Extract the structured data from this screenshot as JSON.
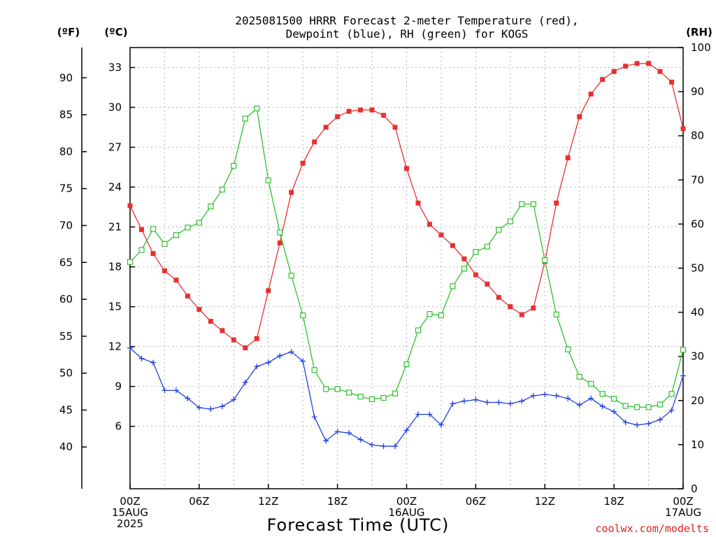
{
  "chart_data": {
    "type": "line",
    "title_lines": [
      "2025081500 HRRR Forecast 2-meter Temperature (red),",
      "Dewpoint (blue), RH (green) for KOGS"
    ],
    "xlabel": "Forecast Time (UTC)",
    "credit": "coolwx.com/modelts",
    "x_unit": "forecast hour",
    "x_range": [
      0,
      48
    ],
    "x_ticks": [
      {
        "hour": 0,
        "lines": [
          "00Z",
          "15AUG",
          "2025"
        ]
      },
      {
        "hour": 6,
        "lines": [
          "06Z"
        ]
      },
      {
        "hour": 12,
        "lines": [
          "12Z"
        ]
      },
      {
        "hour": 18,
        "lines": [
          "18Z"
        ]
      },
      {
        "hour": 24,
        "lines": [
          "00Z",
          "16AUG"
        ]
      },
      {
        "hour": 30,
        "lines": [
          "06Z"
        ]
      },
      {
        "hour": 36,
        "lines": [
          "12Z"
        ]
      },
      {
        "hour": 42,
        "lines": [
          "18Z"
        ]
      },
      {
        "hour": 48,
        "lines": [
          "00Z",
          "17AUG"
        ]
      }
    ],
    "axes": {
      "celsius": {
        "unit_label": "(ºC)",
        "range": [
          1.3,
          34.5
        ],
        "ticks": [
          6,
          9,
          12,
          15,
          18,
          21,
          24,
          27,
          30,
          33
        ]
      },
      "fahrenheit": {
        "unit_label": "(ºF)",
        "range": [
          34.34,
          94.1
        ],
        "ticks": [
          40,
          45,
          50,
          55,
          60,
          65,
          70,
          75,
          80,
          85,
          90
        ]
      },
      "rh": {
        "unit_label": "(RH)",
        "range": [
          0,
          100
        ],
        "ticks": [
          0,
          10,
          20,
          30,
          40,
          50,
          60,
          70,
          80,
          90,
          100
        ]
      }
    },
    "grid": true,
    "series": [
      {
        "name": "2-meter Temperature",
        "color": "#e83030",
        "axis": "celsius",
        "marker": "filled-square",
        "x": [
          0,
          1,
          2,
          3,
          4,
          5,
          6,
          7,
          8,
          9,
          10,
          11,
          12,
          13,
          14,
          15,
          16,
          17,
          18,
          19,
          20,
          21,
          22,
          23,
          24,
          25,
          26,
          27,
          28,
          29,
          30,
          31,
          32,
          33,
          34,
          35,
          36,
          37,
          38,
          39,
          40,
          41,
          42,
          43,
          44,
          45,
          46,
          47,
          48
        ],
        "y": [
          22.6,
          20.8,
          19.0,
          17.7,
          17.0,
          15.8,
          14.8,
          13.9,
          13.2,
          12.5,
          11.9,
          12.6,
          16.2,
          19.8,
          23.6,
          25.8,
          27.4,
          28.5,
          29.3,
          29.7,
          29.8,
          29.8,
          29.4,
          28.5,
          25.4,
          22.8,
          21.2,
          20.4,
          19.6,
          18.6,
          17.4,
          16.7,
          15.7,
          15.0,
          14.4,
          14.9,
          18.4,
          22.8,
          26.2,
          29.3,
          31.0,
          32.1,
          32.7,
          33.1,
          33.3,
          33.3,
          32.7,
          31.9,
          28.4
        ]
      },
      {
        "name": "Dewpoint",
        "color": "#2040e0",
        "axis": "celsius",
        "marker": "plus",
        "x": [
          0,
          1,
          2,
          3,
          4,
          5,
          6,
          7,
          8,
          9,
          10,
          11,
          12,
          13,
          14,
          15,
          16,
          17,
          18,
          19,
          20,
          21,
          22,
          23,
          24,
          25,
          26,
          27,
          28,
          29,
          30,
          31,
          32,
          33,
          34,
          35,
          36,
          37,
          38,
          39,
          40,
          41,
          42,
          43,
          44,
          45,
          46,
          47,
          48
        ],
        "y": [
          11.9,
          11.1,
          10.8,
          8.7,
          8.7,
          8.1,
          7.4,
          7.3,
          7.5,
          8.0,
          9.3,
          10.5,
          10.8,
          11.3,
          11.6,
          10.9,
          6.7,
          4.9,
          5.6,
          5.5,
          5.0,
          4.6,
          4.5,
          4.5,
          5.7,
          6.9,
          6.9,
          6.1,
          7.7,
          7.9,
          8.0,
          7.8,
          7.8,
          7.7,
          7.9,
          8.3,
          8.4,
          8.3,
          8.1,
          7.6,
          8.1,
          7.5,
          7.1,
          6.3,
          6.1,
          6.2,
          6.5,
          7.2,
          9.8
        ]
      },
      {
        "name": "RH",
        "color": "#30c030",
        "axis": "rh",
        "marker": "open-square",
        "x": [
          0,
          1,
          2,
          3,
          4,
          5,
          6,
          7,
          8,
          9,
          10,
          11,
          12,
          13,
          14,
          15,
          16,
          17,
          18,
          19,
          20,
          21,
          22,
          23,
          24,
          25,
          26,
          27,
          28,
          29,
          30,
          31,
          32,
          33,
          34,
          35,
          36,
          37,
          38,
          39,
          40,
          41,
          42,
          43,
          44,
          45,
          46,
          47,
          48
        ],
        "y": [
          51.4,
          54.1,
          58.9,
          55.5,
          57.5,
          59.2,
          60.3,
          64.0,
          67.8,
          73.2,
          83.9,
          86.2,
          69.9,
          58.1,
          48.3,
          39.3,
          26.9,
          22.6,
          22.6,
          21.8,
          20.9,
          20.3,
          20.6,
          21.6,
          28.2,
          35.9,
          39.6,
          39.3,
          45.9,
          49.9,
          53.7,
          54.9,
          58.7,
          60.6,
          64.5,
          64.5,
          51.8,
          39.5,
          31.6,
          25.4,
          23.8,
          21.5,
          20.4,
          18.8,
          18.5,
          18.5,
          19.1,
          21.5,
          31.5
        ]
      }
    ]
  }
}
